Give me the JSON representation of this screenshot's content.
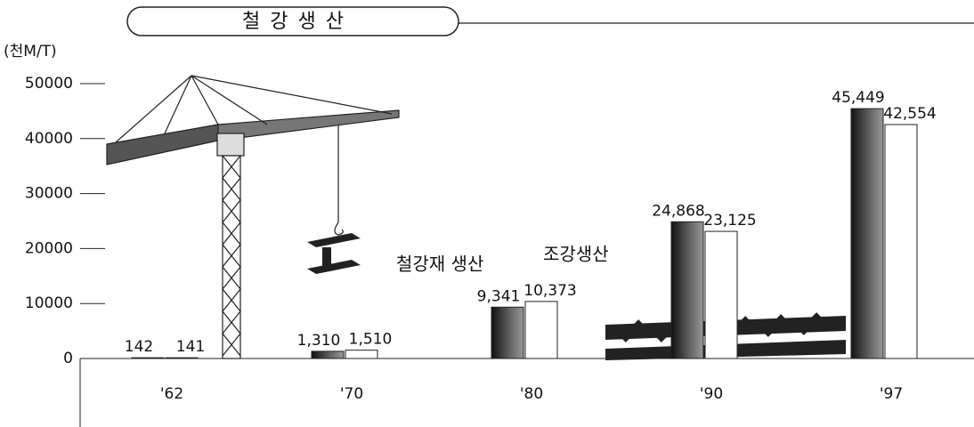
{
  "chart_data": {
    "type": "bar",
    "title": "철 강 생 산",
    "y_label": "(천M/T)",
    "categories": [
      "'62",
      "'70",
      "'80",
      "'90",
      "'97"
    ],
    "series": [
      {
        "name": "철강재 생산",
        "color": "#3a3a3a",
        "values": [
          142,
          1310,
          9341,
          24868,
          45449
        ],
        "value_labels": [
          "142",
          "1,310",
          "9,341",
          "24,868",
          "45,449"
        ]
      },
      {
        "name": "조강생산",
        "color": "#ffffff",
        "values": [
          141,
          1510,
          10373,
          23125,
          42554
        ],
        "value_labels": [
          "141",
          "1,510",
          "10,373",
          "23,125",
          "42,554"
        ]
      }
    ],
    "ylim": [
      0,
      50000
    ],
    "yticks": [
      0,
      10000,
      20000,
      30000,
      40000,
      50000
    ],
    "grid": false
  }
}
